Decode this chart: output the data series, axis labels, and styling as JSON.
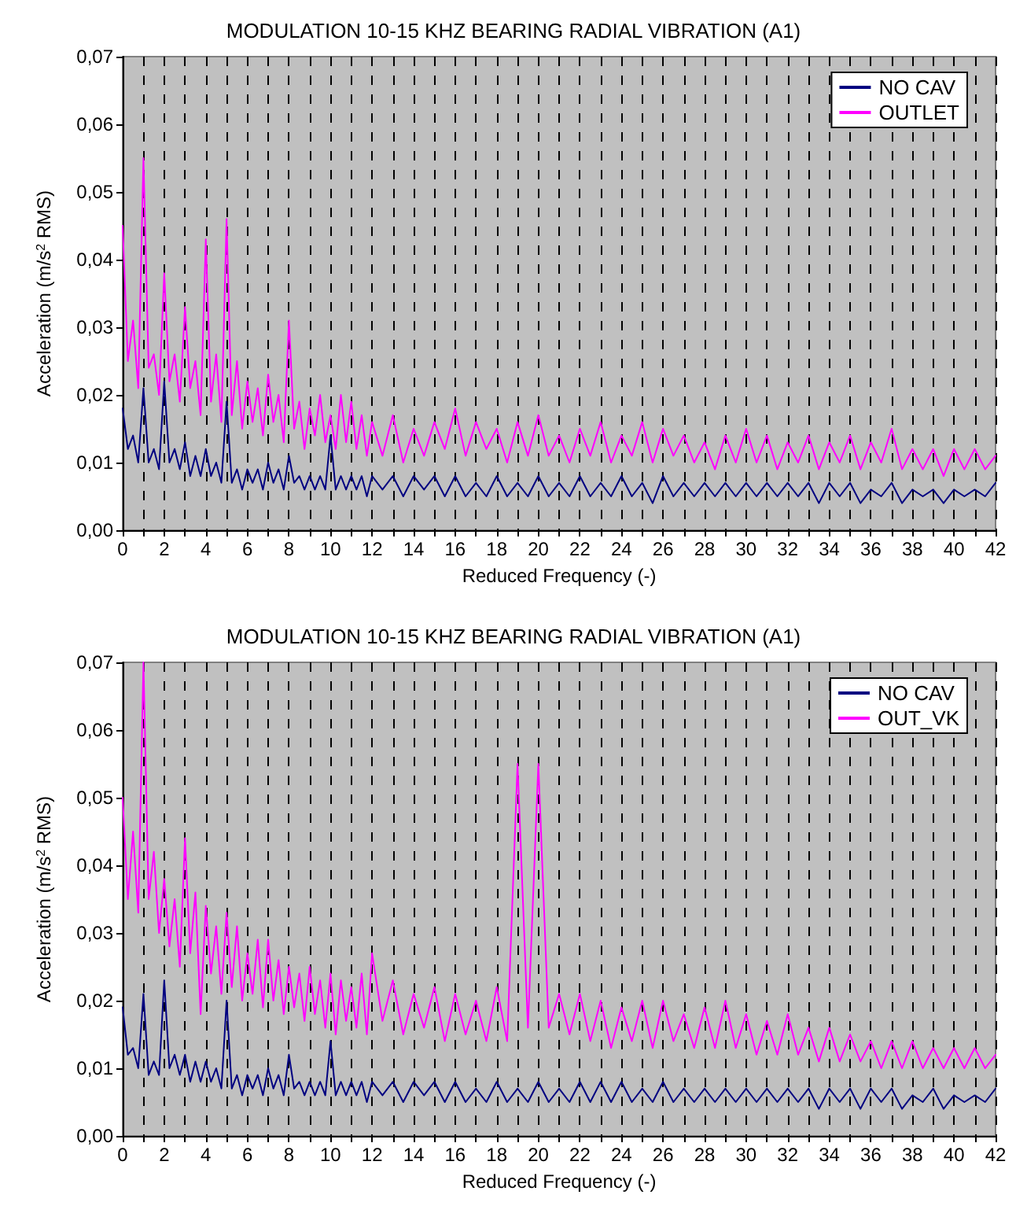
{
  "chart_data": [
    {
      "type": "line",
      "title": "MODULATION 10-15 KHZ BEARING RADIAL VIBRATION (A1)",
      "xlabel": "Reduced Frequency (-)",
      "ylabel": "Acceleration (m/s$^{2}$ RMS)",
      "x": [
        0,
        0.25,
        0.5,
        0.75,
        1,
        1.25,
        1.5,
        1.75,
        2,
        2.25,
        2.5,
        2.75,
        3,
        3.25,
        3.5,
        3.75,
        4,
        4.25,
        4.5,
        4.75,
        5,
        5.25,
        5.5,
        5.75,
        6,
        6.25,
        6.5,
        6.75,
        7,
        7.25,
        7.5,
        7.75,
        8,
        8.25,
        8.5,
        8.75,
        9,
        9.25,
        9.5,
        9.75,
        10,
        10.25,
        10.5,
        10.75,
        11,
        11.25,
        11.5,
        11.75,
        12,
        12.5,
        13,
        13.5,
        14,
        14.5,
        15,
        15.5,
        16,
        16.5,
        17,
        17.5,
        18,
        18.5,
        19,
        19.5,
        20,
        20.5,
        21,
        21.5,
        22,
        22.5,
        23,
        23.5,
        24,
        24.5,
        25,
        25.5,
        26,
        26.5,
        27,
        27.5,
        28,
        28.5,
        29,
        29.5,
        30,
        30.5,
        31,
        31.5,
        32,
        32.5,
        33,
        33.5,
        34,
        34.5,
        35,
        35.5,
        36,
        36.5,
        37,
        37.5,
        38,
        38.5,
        39,
        39.5,
        40,
        40.5,
        41,
        41.5,
        42
      ],
      "series": [
        {
          "name": "NO CAV",
          "color": "#000080",
          "values": [
            0.018,
            0.012,
            0.014,
            0.01,
            0.021,
            0.01,
            0.012,
            0.009,
            0.022,
            0.01,
            0.012,
            0.009,
            0.013,
            0.008,
            0.011,
            0.008,
            0.012,
            0.008,
            0.01,
            0.007,
            0.019,
            0.007,
            0.009,
            0.006,
            0.009,
            0.007,
            0.009,
            0.006,
            0.01,
            0.007,
            0.009,
            0.006,
            0.011,
            0.007,
            0.008,
            0.006,
            0.008,
            0.006,
            0.008,
            0.006,
            0.014,
            0.006,
            0.008,
            0.006,
            0.008,
            0.006,
            0.008,
            0.005,
            0.008,
            0.006,
            0.008,
            0.005,
            0.008,
            0.006,
            0.008,
            0.005,
            0.008,
            0.005,
            0.007,
            0.005,
            0.008,
            0.005,
            0.007,
            0.005,
            0.008,
            0.005,
            0.007,
            0.005,
            0.008,
            0.005,
            0.007,
            0.005,
            0.008,
            0.005,
            0.007,
            0.004,
            0.008,
            0.005,
            0.007,
            0.005,
            0.007,
            0.005,
            0.007,
            0.005,
            0.007,
            0.005,
            0.007,
            0.005,
            0.007,
            0.005,
            0.007,
            0.004,
            0.007,
            0.005,
            0.007,
            0.004,
            0.006,
            0.005,
            0.007,
            0.004,
            0.006,
            0.005,
            0.006,
            0.004,
            0.006,
            0.005,
            0.006,
            0.005,
            0.007
          ]
        },
        {
          "name": "OUTLET",
          "color": "#ff00ff",
          "values": [
            0.045,
            0.025,
            0.031,
            0.021,
            0.055,
            0.024,
            0.026,
            0.02,
            0.038,
            0.022,
            0.026,
            0.019,
            0.033,
            0.021,
            0.025,
            0.017,
            0.043,
            0.019,
            0.026,
            0.016,
            0.046,
            0.017,
            0.025,
            0.015,
            0.022,
            0.016,
            0.021,
            0.014,
            0.023,
            0.016,
            0.02,
            0.013,
            0.031,
            0.015,
            0.019,
            0.012,
            0.018,
            0.014,
            0.02,
            0.013,
            0.017,
            0.012,
            0.02,
            0.013,
            0.019,
            0.012,
            0.017,
            0.011,
            0.016,
            0.011,
            0.017,
            0.01,
            0.015,
            0.011,
            0.016,
            0.012,
            0.018,
            0.011,
            0.016,
            0.012,
            0.015,
            0.01,
            0.016,
            0.011,
            0.017,
            0.011,
            0.014,
            0.01,
            0.015,
            0.011,
            0.016,
            0.01,
            0.014,
            0.011,
            0.016,
            0.01,
            0.015,
            0.011,
            0.014,
            0.01,
            0.013,
            0.009,
            0.014,
            0.01,
            0.015,
            0.01,
            0.014,
            0.009,
            0.013,
            0.01,
            0.014,
            0.009,
            0.013,
            0.01,
            0.014,
            0.009,
            0.013,
            0.01,
            0.015,
            0.009,
            0.012,
            0.009,
            0.012,
            0.008,
            0.012,
            0.009,
            0.012,
            0.009,
            0.011
          ]
        }
      ],
      "xlim": [
        0,
        42
      ],
      "ylim": [
        0,
        0.07
      ],
      "xticks": [
        0,
        {
          "value": 1,
          "label": null
        },
        2,
        {
          "value": 3,
          "label": null
        },
        4,
        {
          "value": 5,
          "label": null
        },
        6,
        {
          "value": 7,
          "label": null
        },
        8,
        {
          "value": 9,
          "label": null
        },
        10,
        {
          "value": 11,
          "label": null
        },
        12,
        {
          "value": 13,
          "label": null
        },
        14,
        {
          "value": 15,
          "label": null
        },
        16,
        {
          "value": 17,
          "label": null
        },
        18,
        {
          "value": 19,
          "label": null
        },
        20,
        {
          "value": 21,
          "label": null
        },
        22,
        {
          "value": 23,
          "label": null
        },
        24,
        {
          "value": 25,
          "label": null
        },
        26,
        {
          "value": 27,
          "label": null
        },
        28,
        {
          "value": 29,
          "label": null
        },
        30,
        {
          "value": 31,
          "label": null
        },
        32,
        {
          "value": 33,
          "label": null
        },
        34,
        {
          "value": 35,
          "label": null
        },
        36,
        {
          "value": 37,
          "label": null
        },
        38,
        {
          "value": 39,
          "label": null
        },
        40,
        {
          "value": 41,
          "label": null
        },
        42
      ],
      "yticks": [
        {
          "value": 0,
          "label": "0,00"
        },
        {
          "value": 0.01,
          "label": "0,01"
        },
        {
          "value": 0.02,
          "label": "0,02"
        },
        {
          "value": 0.03,
          "label": "0,03"
        },
        {
          "value": 0.04,
          "label": "0,04"
        },
        {
          "value": 0.05,
          "label": "0,05"
        },
        {
          "value": 0.06,
          "label": "0,06"
        },
        {
          "value": 0.07,
          "label": "0,07"
        }
      ],
      "grid": "x",
      "legend": "top right",
      "marker": "none",
      "line_style": "solid"
    },
    {
      "type": "line",
      "title": "MODULATION 10-15 KHZ BEARING RADIAL VIBRATION (A1)",
      "xlabel": "Reduced Frequency (-)",
      "ylabel": "Acceleration (m/s$^{2}$ RMS)",
      "x": [
        0,
        0.25,
        0.5,
        0.75,
        1,
        1.25,
        1.5,
        1.75,
        2,
        2.25,
        2.5,
        2.75,
        3,
        3.25,
        3.5,
        3.75,
        4,
        4.25,
        4.5,
        4.75,
        5,
        5.25,
        5.5,
        5.75,
        6,
        6.25,
        6.5,
        6.75,
        7,
        7.25,
        7.5,
        7.75,
        8,
        8.25,
        8.5,
        8.75,
        9,
        9.25,
        9.5,
        9.75,
        10,
        10.25,
        10.5,
        10.75,
        11,
        11.25,
        11.5,
        11.75,
        12,
        12.5,
        13,
        13.5,
        14,
        14.5,
        15,
        15.5,
        16,
        16.5,
        17,
        17.5,
        18,
        18.5,
        19,
        19.5,
        20,
        20.5,
        21,
        21.5,
        22,
        22.5,
        23,
        23.5,
        24,
        24.5,
        25,
        25.5,
        26,
        26.5,
        27,
        27.5,
        28,
        28.5,
        29,
        29.5,
        30,
        30.5,
        31,
        31.5,
        32,
        32.5,
        33,
        33.5,
        34,
        34.5,
        35,
        35.5,
        36,
        36.5,
        37,
        37.5,
        38,
        38.5,
        39,
        39.5,
        40,
        40.5,
        41,
        41.5,
        42
      ],
      "series": [
        {
          "name": "NO CAV",
          "color": "#000080",
          "values": [
            0.019,
            0.012,
            0.013,
            0.01,
            0.021,
            0.009,
            0.011,
            0.009,
            0.023,
            0.01,
            0.012,
            0.009,
            0.012,
            0.008,
            0.011,
            0.008,
            0.011,
            0.008,
            0.01,
            0.007,
            0.02,
            0.007,
            0.009,
            0.006,
            0.009,
            0.007,
            0.009,
            0.006,
            0.01,
            0.007,
            0.009,
            0.006,
            0.012,
            0.007,
            0.008,
            0.006,
            0.008,
            0.006,
            0.008,
            0.006,
            0.014,
            0.006,
            0.008,
            0.006,
            0.008,
            0.006,
            0.008,
            0.005,
            0.008,
            0.006,
            0.008,
            0.005,
            0.008,
            0.006,
            0.008,
            0.005,
            0.008,
            0.005,
            0.007,
            0.005,
            0.008,
            0.005,
            0.007,
            0.005,
            0.008,
            0.005,
            0.007,
            0.005,
            0.008,
            0.005,
            0.008,
            0.005,
            0.008,
            0.005,
            0.007,
            0.005,
            0.008,
            0.005,
            0.007,
            0.005,
            0.007,
            0.005,
            0.007,
            0.005,
            0.007,
            0.005,
            0.007,
            0.005,
            0.007,
            0.005,
            0.007,
            0.004,
            0.007,
            0.005,
            0.007,
            0.004,
            0.007,
            0.005,
            0.007,
            0.004,
            0.006,
            0.005,
            0.007,
            0.004,
            0.006,
            0.005,
            0.006,
            0.005,
            0.007
          ]
        },
        {
          "name": "OUT_VK",
          "color": "#ff00ff",
          "values": [
            0.05,
            0.035,
            0.045,
            0.033,
            0.07,
            0.035,
            0.042,
            0.03,
            0.038,
            0.028,
            0.035,
            0.025,
            0.044,
            0.027,
            0.036,
            0.018,
            0.034,
            0.024,
            0.031,
            0.021,
            0.033,
            0.022,
            0.031,
            0.02,
            0.027,
            0.021,
            0.029,
            0.019,
            0.029,
            0.02,
            0.026,
            0.018,
            0.025,
            0.019,
            0.024,
            0.017,
            0.025,
            0.018,
            0.023,
            0.016,
            0.024,
            0.015,
            0.023,
            0.017,
            0.022,
            0.016,
            0.024,
            0.015,
            0.027,
            0.017,
            0.023,
            0.015,
            0.021,
            0.016,
            0.022,
            0.014,
            0.021,
            0.015,
            0.02,
            0.014,
            0.022,
            0.014,
            0.055,
            0.016,
            0.055,
            0.016,
            0.021,
            0.015,
            0.021,
            0.014,
            0.02,
            0.013,
            0.019,
            0.014,
            0.02,
            0.013,
            0.02,
            0.014,
            0.018,
            0.013,
            0.019,
            0.013,
            0.02,
            0.013,
            0.018,
            0.012,
            0.017,
            0.012,
            0.018,
            0.012,
            0.016,
            0.011,
            0.016,
            0.011,
            0.015,
            0.011,
            0.014,
            0.01,
            0.014,
            0.01,
            0.014,
            0.01,
            0.013,
            0.01,
            0.013,
            0.01,
            0.013,
            0.01,
            0.012
          ]
        }
      ],
      "xlim": [
        0,
        42
      ],
      "ylim": [
        0,
        0.07
      ],
      "xticks": [
        0,
        {
          "value": 1,
          "label": null
        },
        2,
        {
          "value": 3,
          "label": null
        },
        4,
        {
          "value": 5,
          "label": null
        },
        6,
        {
          "value": 7,
          "label": null
        },
        8,
        {
          "value": 9,
          "label": null
        },
        10,
        {
          "value": 11,
          "label": null
        },
        12,
        {
          "value": 13,
          "label": null
        },
        14,
        {
          "value": 15,
          "label": null
        },
        16,
        {
          "value": 17,
          "label": null
        },
        18,
        {
          "value": 19,
          "label": null
        },
        20,
        {
          "value": 21,
          "label": null
        },
        22,
        {
          "value": 23,
          "label": null
        },
        24,
        {
          "value": 25,
          "label": null
        },
        26,
        {
          "value": 27,
          "label": null
        },
        28,
        {
          "value": 29,
          "label": null
        },
        30,
        {
          "value": 31,
          "label": null
        },
        32,
        {
          "value": 33,
          "label": null
        },
        34,
        {
          "value": 35,
          "label": null
        },
        36,
        {
          "value": 37,
          "label": null
        },
        38,
        {
          "value": 39,
          "label": null
        },
        40,
        {
          "value": 41,
          "label": null
        },
        42
      ],
      "yticks": [
        {
          "value": 0,
          "label": "0,00"
        },
        {
          "value": 0.01,
          "label": "0,01"
        },
        {
          "value": 0.02,
          "label": "0,02"
        },
        {
          "value": 0.03,
          "label": "0,03"
        },
        {
          "value": 0.04,
          "label": "0,04"
        },
        {
          "value": 0.05,
          "label": "0,05"
        },
        {
          "value": 0.06,
          "label": "0,06"
        },
        {
          "value": 0.07,
          "label": "0,07"
        }
      ],
      "grid": "x",
      "legend": "top right",
      "marker": "none",
      "line_style": "solid"
    }
  ]
}
